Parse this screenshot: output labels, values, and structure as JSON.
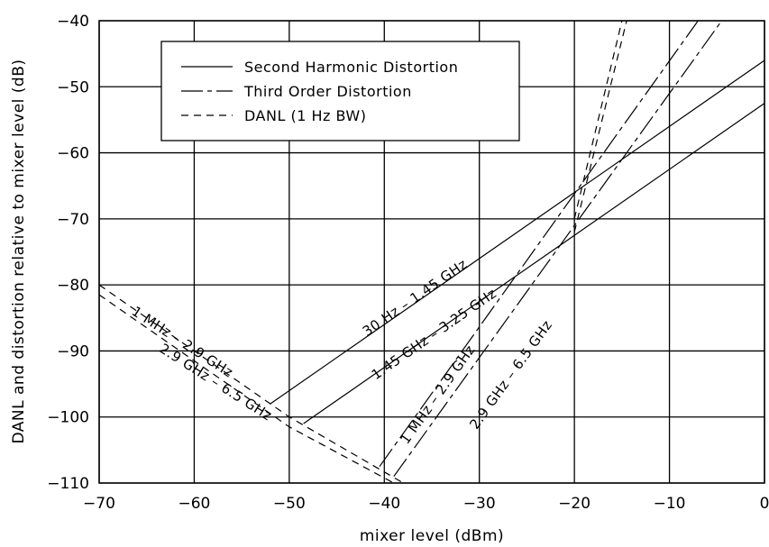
{
  "chart_data": {
    "type": "line",
    "xlabel": "mixer level (dBm)",
    "ylabel": "DANL and distortion relative to mixer level (dB)",
    "xlim": [
      -70,
      0
    ],
    "ylim": [
      -110,
      -40
    ],
    "xticks": [
      -70,
      -60,
      -50,
      -40,
      -30,
      -20,
      -10,
      0
    ],
    "yticks": [
      -40,
      -50,
      -60,
      -70,
      -80,
      -90,
      -100,
      -110
    ],
    "xtick_labels": [
      "−70",
      "−60",
      "−50",
      "−40",
      "−30",
      "−20",
      "−10",
      "0"
    ],
    "ytick_labels": [
      "−40",
      "−50",
      "−60",
      "−70",
      "−80",
      "−90",
      "−100",
      "−110"
    ],
    "grid": true,
    "legend_position": "top-left",
    "legend": [
      {
        "label": "Second Harmonic Distortion",
        "style": "solid"
      },
      {
        "label": "Third Order Distortion",
        "style": "dash-dot"
      },
      {
        "label": "DANL (1 Hz BW)",
        "style": "dashed"
      }
    ],
    "series": [
      {
        "name": "30 Hz – 1.45 GHz",
        "style": "solid",
        "x": [
          -52,
          0
        ],
        "y": [
          -98,
          -46
        ]
      },
      {
        "name": "1.45 GHz – 3.25 GHz",
        "style": "solid",
        "x": [
          -48.5,
          0
        ],
        "y": [
          -101,
          -52.5
        ]
      },
      {
        "name": "1 MHz – 2.9 GHz",
        "style": "dash-dot",
        "x": [
          -40.5,
          -5
        ],
        "y": [
          -107.5,
          -36
        ]
      },
      {
        "name": "2.9 GHz – 6.5 GHz",
        "style": "dash-dot",
        "x": [
          -39,
          -3
        ],
        "y": [
          -109,
          -37
        ]
      },
      {
        "name": "1 MHz – 2.9 GHz",
        "style": "dashed",
        "x": [
          -70,
          -50,
          -38
        ],
        "y": [
          -80,
          -100,
          -110
        ]
      },
      {
        "name": "2.9 GHz – 6.5 GHz",
        "style": "dashed",
        "x": [
          -70,
          -50,
          -39
        ],
        "y": [
          -81.5,
          -101.5,
          -110
        ]
      },
      {
        "name": "1 MHz – 2.9 GHz",
        "style": "dashed",
        "x": [
          -20,
          -15
        ],
        "y": [
          -70,
          -40
        ]
      },
      {
        "name": "2.9 GHz – 6.5 GHz",
        "style": "dashed",
        "x": [
          -20,
          -14.5
        ],
        "y": [
          -72,
          -40
        ]
      }
    ],
    "annotations": [
      {
        "text": "30 Hz – 1.45 GHz",
        "x": -36.5,
        "y": -82.5,
        "angle_series": 0
      },
      {
        "text": "1.45 GHz – 3.25 GHz",
        "x": -34.5,
        "y": -88.0,
        "angle_series": 1
      },
      {
        "text": "1 MHz – 2.9 GHz",
        "x": -34.0,
        "y": -97.0,
        "angle_series": 2
      },
      {
        "text": "2.9 GHz – 6.5 GHz",
        "x": -26.3,
        "y": -94.0,
        "angle_series": 3
      },
      {
        "text": "1 MHz – 2.9 GHz",
        "x": -61.5,
        "y": -89.2,
        "angle_series": 4
      },
      {
        "text": "2.9 GHz – 6.5 GHz",
        "x": -58.0,
        "y": -95.3,
        "angle_series": 5
      }
    ]
  }
}
